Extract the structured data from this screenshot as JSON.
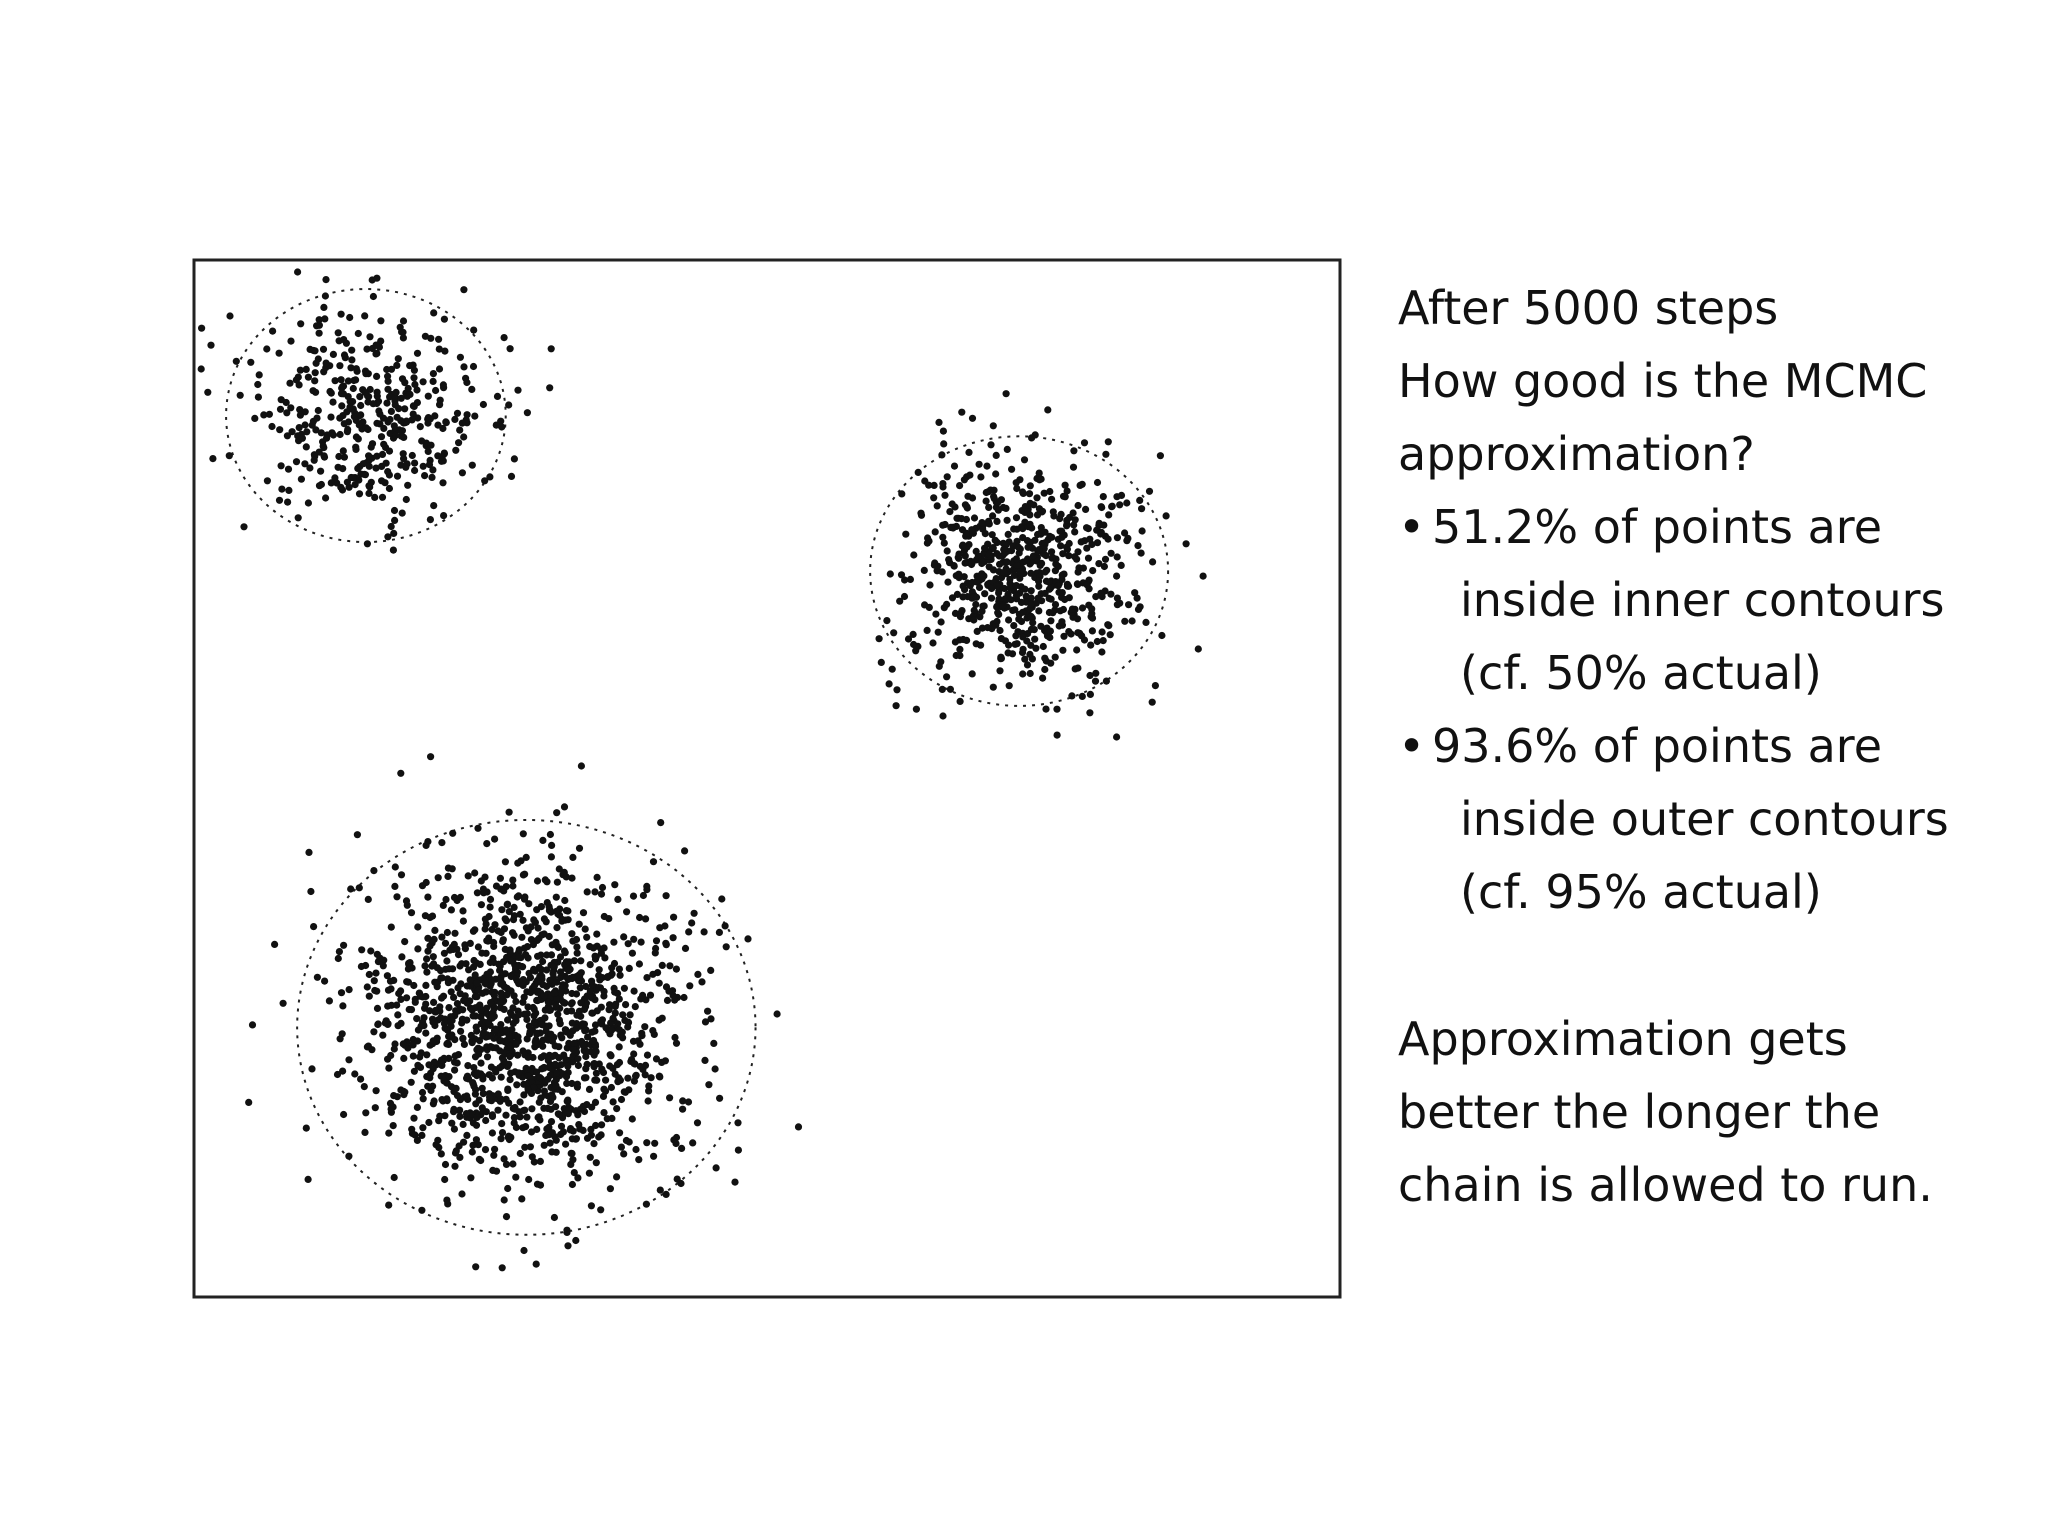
{
  "chart_data": {
    "type": "scatter",
    "title": "",
    "xlabel": "",
    "ylabel": "",
    "xlim": [
      0,
      100
    ],
    "ylim": [
      0,
      100
    ],
    "grid": false,
    "clusters": [
      {
        "center": [
          15.0,
          85.0
        ],
        "spread": [
          5.5,
          5.0
        ],
        "count": 420,
        "contour_radius": 12.2
      },
      {
        "center": [
          72.0,
          70.0
        ],
        "spread": [
          5.0,
          5.5
        ],
        "count": 700,
        "contour_radius": 13.0
      },
      {
        "center": [
          29.0,
          26.0
        ],
        "spread": [
          7.0,
          7.5
        ],
        "count": 1500,
        "contour_radius": 20.0
      }
    ]
  },
  "text": {
    "heading": "After 5000 steps",
    "question_line1": "How good is the MCMC",
    "question_line2": "approximation?",
    "bullet_mark": "•",
    "bullet1_line1": "51.2% of points are",
    "bullet1_line2": "inside inner contours",
    "bullet1_line3": "(cf. 50% actual)",
    "bullet2_line1": "93.6% of points are",
    "bullet2_line2": "inside outer contours",
    "bullet2_line3": "(cf. 95% actual)",
    "conclusion_line1": "Approximation gets",
    "conclusion_line2": "better the longer the",
    "conclusion_line3": "chain is allowed to run."
  }
}
